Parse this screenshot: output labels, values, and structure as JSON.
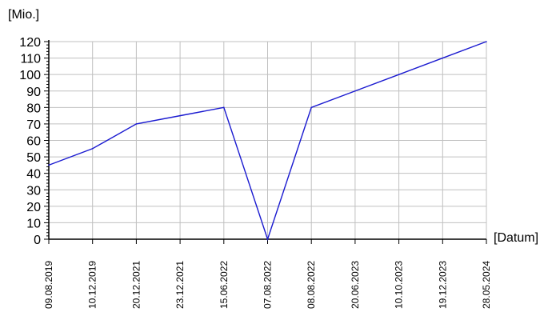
{
  "chart_data": {
    "type": "line",
    "title": "",
    "ylabel": "[Mio.]",
    "xlabel": "[Datum]",
    "categories": [
      "09.08.2019",
      "10.12.2019",
      "20.12.2021",
      "23.12.2021",
      "15.06.2022",
      "07.08.2022",
      "08.08.2022",
      "20.06.2023",
      "10.10.2023",
      "19.12.2023",
      "28.05.2024"
    ],
    "series": [
      {
        "values": [
          45,
          55,
          70,
          75,
          80,
          0,
          80,
          90,
          100,
          110,
          120
        ]
      }
    ],
    "ylim": [
      0,
      120
    ],
    "ytick_step": 10,
    "grid": true,
    "colors": {
      "line": "#1a1ad0",
      "grid": "#c0c0c0",
      "axis": "#000000"
    }
  }
}
